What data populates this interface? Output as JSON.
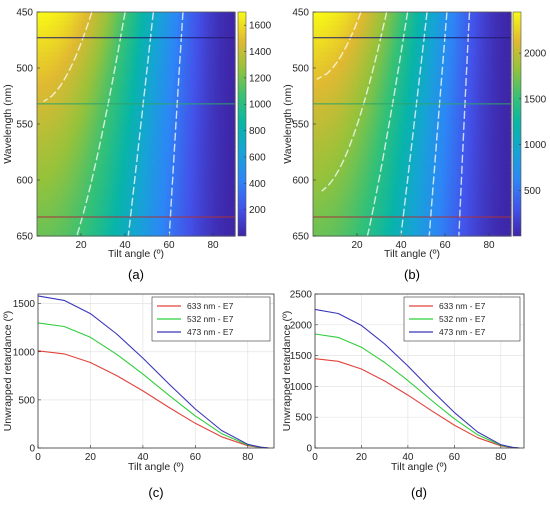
{
  "chart_data": [
    {
      "type": "heatmap",
      "caption": "(a)",
      "xlabel": "Tilt angle (º)",
      "ylabel": "Wavelength (nm)",
      "xlim": [
        0,
        90
      ],
      "ylim": [
        450,
        650
      ],
      "x_ticks": [
        "20",
        "40",
        "60",
        "80"
      ],
      "y_ticks": [
        "450",
        "500",
        "550",
        "600",
        "650"
      ],
      "y_reversed": true,
      "colorbar": {
        "min": 0,
        "max": 1700,
        "ticks": [
          "200",
          "400",
          "600",
          "800",
          "1000",
          "1200",
          "1400",
          "1600"
        ]
      },
      "colormap": "parula",
      "reference_lines": [
        {
          "wavelength": 473,
          "color": "#1d1d6e"
        },
        {
          "wavelength": 532,
          "color": "#2ea36b"
        },
        {
          "wavelength": 633,
          "color": "#a8323c"
        }
      ],
      "max_retardance_at_450": 1700
    },
    {
      "type": "heatmap",
      "caption": "(b)",
      "xlabel": "Tilt angle (º)",
      "ylabel": "Wavelength (nm)",
      "xlim": [
        0,
        90
      ],
      "ylim": [
        450,
        650
      ],
      "x_ticks": [
        "20",
        "40",
        "60",
        "80"
      ],
      "y_ticks": [
        "450",
        "500",
        "550",
        "600",
        "650"
      ],
      "y_reversed": true,
      "colorbar": {
        "min": 0,
        "max": 2450,
        "ticks": [
          "500",
          "1000",
          "1500",
          "2000"
        ]
      },
      "colormap": "parula",
      "reference_lines": [
        {
          "wavelength": 473,
          "color": "#1d1d6e"
        },
        {
          "wavelength": 532,
          "color": "#2ea36b"
        },
        {
          "wavelength": 633,
          "color": "#a8323c"
        }
      ],
      "max_retardance_at_450": 2450
    },
    {
      "type": "line",
      "caption": "(c)",
      "xlabel": "Tilt angle (º)",
      "ylabel": "Unwrapped retardance (º)",
      "xlim": [
        0,
        90
      ],
      "ylim": [
        0,
        1600
      ],
      "x_ticks": [
        0,
        20,
        40,
        60,
        80
      ],
      "y_ticks": [
        0,
        500,
        1000,
        1500
      ],
      "grid": true,
      "legend_position": "top-right",
      "series": [
        {
          "name": "633 nm - E7",
          "color": "#e0443c",
          "x": [
            0,
            10,
            20,
            30,
            40,
            50,
            60,
            70,
            80,
            85,
            88
          ],
          "y": [
            1010,
            978,
            888,
            752,
            593,
            421,
            257,
            116,
            24,
            5,
            0
          ]
        },
        {
          "name": "532 nm - E7",
          "color": "#2fce3a",
          "x": [
            0,
            10,
            20,
            30,
            40,
            50,
            60,
            70,
            80,
            85,
            88
          ],
          "y": [
            1300,
            1262,
            1150,
            974,
            768,
            546,
            333,
            150,
            31,
            7,
            0
          ]
        },
        {
          "name": "473 nm - E7",
          "color": "#3a36b8",
          "x": [
            0,
            10,
            20,
            30,
            40,
            50,
            60,
            70,
            80,
            85,
            88
          ],
          "y": [
            1580,
            1533,
            1396,
            1184,
            934,
            664,
            405,
            182,
            38,
            8,
            0
          ]
        }
      ]
    },
    {
      "type": "line",
      "caption": "(d)",
      "xlabel": "Tilt angle (º)",
      "ylabel": "Unwrapped retardance (º)",
      "xlim": [
        0,
        90
      ],
      "ylim": [
        0,
        2500
      ],
      "x_ticks": [
        0,
        20,
        40,
        60,
        80
      ],
      "y_ticks": [
        0,
        500,
        1000,
        1500,
        2000,
        2500
      ],
      "grid": true,
      "legend_position": "top-right",
      "series": [
        {
          "name": "633 nm - E7",
          "color": "#e0443c",
          "x": [
            0,
            10,
            20,
            30,
            40,
            50,
            60,
            70,
            80,
            85,
            88
          ],
          "y": [
            1450,
            1408,
            1282,
            1087,
            858,
            610,
            372,
            168,
            35,
            7,
            0
          ]
        },
        {
          "name": "532 nm - E7",
          "color": "#2fce3a",
          "x": [
            0,
            10,
            20,
            30,
            40,
            50,
            60,
            70,
            80,
            85,
            88
          ],
          "y": [
            1850,
            1796,
            1636,
            1388,
            1094,
            779,
            475,
            214,
            44,
            9,
            0
          ]
        },
        {
          "name": "473 nm - E7",
          "color": "#3a36b8",
          "x": [
            0,
            10,
            20,
            30,
            40,
            50,
            60,
            70,
            80,
            85,
            88
          ],
          "y": [
            2250,
            2184,
            1990,
            1688,
            1331,
            947,
            578,
            260,
            54,
            11,
            0
          ]
        }
      ]
    }
  ]
}
